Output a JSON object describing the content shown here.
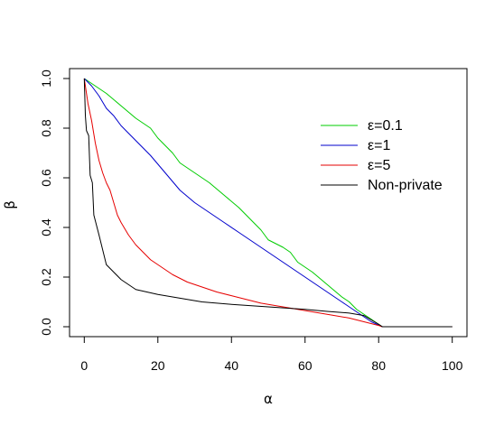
{
  "chart_data": {
    "type": "line",
    "title": "",
    "xlabel": "α",
    "ylabel": "β",
    "xlim": [
      -4,
      104
    ],
    "ylim": [
      -0.04,
      1.04
    ],
    "x_ticks": [
      0,
      20,
      40,
      60,
      80,
      100
    ],
    "x_tick_labels": [
      "0",
      "20",
      "40",
      "60",
      "80",
      "100"
    ],
    "y_ticks": [
      0.0,
      0.2,
      0.4,
      0.6,
      0.8,
      1.0
    ],
    "y_tick_labels": [
      "0.0",
      "0.2",
      "0.4",
      "0.6",
      "0.8",
      "1.0"
    ],
    "grid": false,
    "legend_position": "top-right",
    "series": [
      {
        "name": "ε=0.1",
        "color": "#00cc00",
        "points": [
          [
            0,
            1.0
          ],
          [
            3,
            0.97
          ],
          [
            6,
            0.94
          ],
          [
            10,
            0.89
          ],
          [
            14,
            0.84
          ],
          [
            16,
            0.82
          ],
          [
            18,
            0.8
          ],
          [
            20,
            0.76
          ],
          [
            22,
            0.73
          ],
          [
            24,
            0.7
          ],
          [
            26,
            0.66
          ],
          [
            30,
            0.62
          ],
          [
            34,
            0.58
          ],
          [
            38,
            0.53
          ],
          [
            42,
            0.48
          ],
          [
            46,
            0.42
          ],
          [
            48,
            0.39
          ],
          [
            50,
            0.35
          ],
          [
            54,
            0.32
          ],
          [
            56,
            0.3
          ],
          [
            58,
            0.26
          ],
          [
            62,
            0.22
          ],
          [
            66,
            0.17
          ],
          [
            70,
            0.12
          ],
          [
            72,
            0.1
          ],
          [
            74,
            0.07
          ],
          [
            76,
            0.05
          ],
          [
            78,
            0.03
          ],
          [
            80,
            0.01
          ],
          [
            81,
            0.0
          ],
          [
            90,
            0.0
          ],
          [
            100,
            0.0
          ]
        ]
      },
      {
        "name": "ε=1",
        "color": "#0000cc",
        "points": [
          [
            0,
            1.0
          ],
          [
            2,
            0.97
          ],
          [
            4,
            0.93
          ],
          [
            6,
            0.88
          ],
          [
            8,
            0.85
          ],
          [
            10,
            0.81
          ],
          [
            14,
            0.75
          ],
          [
            18,
            0.69
          ],
          [
            22,
            0.62
          ],
          [
            26,
            0.55
          ],
          [
            30,
            0.5
          ],
          [
            34,
            0.46
          ],
          [
            38,
            0.42
          ],
          [
            42,
            0.38
          ],
          [
            46,
            0.34
          ],
          [
            50,
            0.3
          ],
          [
            54,
            0.26
          ],
          [
            58,
            0.22
          ],
          [
            62,
            0.18
          ],
          [
            66,
            0.14
          ],
          [
            70,
            0.1
          ],
          [
            74,
            0.06
          ],
          [
            76,
            0.04
          ],
          [
            78,
            0.02
          ],
          [
            81,
            0.0
          ],
          [
            90,
            0.0
          ],
          [
            100,
            0.0
          ]
        ]
      },
      {
        "name": "ε=5",
        "color": "#e60000",
        "points": [
          [
            0,
            1.0
          ],
          [
            1,
            0.9
          ],
          [
            2,
            0.83
          ],
          [
            3,
            0.74
          ],
          [
            4,
            0.67
          ],
          [
            5,
            0.62
          ],
          [
            6,
            0.58
          ],
          [
            7,
            0.55
          ],
          [
            8,
            0.5
          ],
          [
            9,
            0.45
          ],
          [
            10,
            0.42
          ],
          [
            12,
            0.37
          ],
          [
            14,
            0.33
          ],
          [
            16,
            0.3
          ],
          [
            18,
            0.27
          ],
          [
            20,
            0.25
          ],
          [
            24,
            0.21
          ],
          [
            28,
            0.18
          ],
          [
            32,
            0.16
          ],
          [
            36,
            0.14
          ],
          [
            40,
            0.125
          ],
          [
            44,
            0.11
          ],
          [
            48,
            0.095
          ],
          [
            52,
            0.085
          ],
          [
            56,
            0.075
          ],
          [
            60,
            0.065
          ],
          [
            64,
            0.055
          ],
          [
            68,
            0.045
          ],
          [
            72,
            0.035
          ],
          [
            76,
            0.02
          ],
          [
            80,
            0.005
          ],
          [
            81,
            0.0
          ],
          [
            90,
            0.0
          ],
          [
            100,
            0.0
          ]
        ]
      },
      {
        "name": "Non-private",
        "color": "#000000",
        "points": [
          [
            0,
            1.0
          ],
          [
            0.3,
            0.85
          ],
          [
            0.6,
            0.79
          ],
          [
            1.2,
            0.77
          ],
          [
            1.6,
            0.61
          ],
          [
            2.2,
            0.58
          ],
          [
            2.6,
            0.45
          ],
          [
            4,
            0.37
          ],
          [
            6,
            0.25
          ],
          [
            8,
            0.22
          ],
          [
            10,
            0.19
          ],
          [
            12,
            0.17
          ],
          [
            14,
            0.15
          ],
          [
            20,
            0.13
          ],
          [
            26,
            0.115
          ],
          [
            32,
            0.1
          ],
          [
            40,
            0.09
          ],
          [
            50,
            0.08
          ],
          [
            60,
            0.07
          ],
          [
            66,
            0.062
          ],
          [
            72,
            0.055
          ],
          [
            76,
            0.045
          ],
          [
            80,
            0.01
          ],
          [
            81,
            0.0
          ],
          [
            90,
            0.0
          ],
          [
            100,
            0.0
          ]
        ]
      }
    ]
  }
}
